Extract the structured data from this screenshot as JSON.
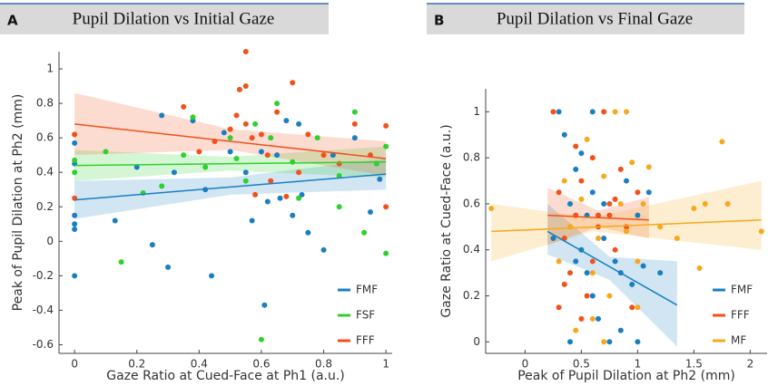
{
  "chart_data": [
    {
      "type": "scatter",
      "label": "A",
      "title": "Pupil Dilation vs Initial Gaze",
      "xlabel": "Gaze Ratio at Cued-Face at Ph1 (a.u.)",
      "ylabel": "Peak of Pupil Dilation at Ph2 (mm)",
      "xlim": [
        -0.05,
        1.02
      ],
      "ylim": [
        -0.65,
        1.1
      ],
      "xticks": [
        0,
        0.2,
        0.4,
        0.6,
        0.8,
        1
      ],
      "yticks": [
        -0.6,
        -0.4,
        -0.2,
        0,
        0.2,
        0.4,
        0.6,
        0.8,
        1
      ],
      "grid": false,
      "legend": "lower right",
      "series": [
        {
          "name": "FMF",
          "color": "#1a7fc1",
          "x": [
            0,
            0,
            0,
            0,
            0,
            0,
            0.13,
            0.2,
            0.25,
            0.28,
            0.3,
            0.32,
            0.38,
            0.42,
            0.44,
            0.48,
            0.5,
            0.55,
            0.57,
            0.6,
            0.61,
            0.62,
            0.65,
            0.68,
            0.7,
            0.72,
            0.75,
            0.8,
            0.83,
            0.9,
            0.95,
            0.98,
            0.66,
            0.73
          ],
          "values": [
            0.57,
            0.15,
            0.1,
            0.07,
            -0.2,
            0.45,
            0.12,
            0.43,
            -0.02,
            0.73,
            -0.15,
            0.4,
            0.7,
            0.3,
            -0.2,
            0.63,
            0.52,
            0.4,
            0.12,
            0.52,
            -0.37,
            0.23,
            0.5,
            0.7,
            0.15,
            0.68,
            0.05,
            -0.05,
            0.5,
            0.6,
            0.17,
            0.36,
            0.25,
            0.27
          ],
          "fit": {
            "x": [
              0,
              1
            ],
            "y": [
              0.24,
              0.39
            ]
          },
          "band": {
            "x": [
              0,
              0.5,
              1
            ],
            "lower": [
              0.13,
              0.27,
              0.3
            ],
            "upper": [
              0.35,
              0.37,
              0.48
            ]
          }
        },
        {
          "name": "FSF",
          "color": "#2fd02f",
          "x": [
            0,
            0,
            0,
            0.1,
            0.15,
            0.22,
            0.28,
            0.35,
            0.38,
            0.42,
            0.5,
            0.52,
            0.55,
            0.58,
            0.6,
            0.63,
            0.65,
            0.7,
            0.72,
            0.78,
            0.85,
            0.9,
            0.93,
            0.97,
            1,
            1,
            0.85
          ],
          "values": [
            0.62,
            0.47,
            0.4,
            0.52,
            -0.12,
            0.28,
            0.32,
            0.5,
            0.72,
            0.43,
            0.6,
            0.48,
            0.35,
            0.68,
            -0.57,
            0.6,
            0.8,
            0.46,
            0.25,
            0.6,
            0.2,
            0.75,
            0.05,
            0.45,
            0.55,
            -0.07,
            0.38
          ],
          "fit": {
            "x": [
              0,
              1
            ],
            "y": [
              0.44,
              0.46
            ]
          },
          "band": {
            "x": [
              0,
              0.5,
              1
            ],
            "lower": [
              0.35,
              0.41,
              0.37
            ],
            "upper": [
              0.53,
              0.49,
              0.55
            ]
          }
        },
        {
          "name": "FFF",
          "color": "#f2511b",
          "x": [
            0,
            0,
            0.35,
            0.4,
            0.45,
            0.5,
            0.52,
            0.53,
            0.55,
            0.55,
            0.55,
            0.57,
            0.6,
            0.62,
            0.63,
            0.65,
            0.7,
            0.72,
            0.75,
            0.8,
            0.85,
            0.9,
            0.95,
            1,
            1,
            0.58,
            0.68
          ],
          "values": [
            0.25,
            0.62,
            0.78,
            0.52,
            0.58,
            0.65,
            0.73,
            0.88,
            0.68,
            1.1,
            0.9,
            0.6,
            0.62,
            0.5,
            0.35,
            0.75,
            0.92,
            0.4,
            0.62,
            0.5,
            0.45,
            0.68,
            0.5,
            0.67,
            0.2,
            0.27,
            0.26
          ],
          "fit": {
            "x": [
              0,
              1
            ],
            "y": [
              0.68,
              0.48
            ]
          },
          "band": {
            "x": [
              0,
              0.5,
              1
            ],
            "lower": [
              0.5,
              0.53,
              0.38
            ],
            "upper": [
              0.86,
              0.65,
              0.58
            ]
          }
        }
      ]
    },
    {
      "type": "scatter",
      "label": "B",
      "title": "Pupil Dilation vs Final Gaze",
      "xlabel": "Peak of Pupil Dilation at Ph2 (mm)",
      "ylabel": "Gaze Ratio at Cued-Face (a.u.)",
      "xlim": [
        -0.35,
        2.15
      ],
      "ylim": [
        -0.05,
        1.1
      ],
      "xticks": [
        0,
        0.5,
        1,
        1.5,
        2
      ],
      "yticks": [
        0,
        0.2,
        0.4,
        0.6,
        0.8,
        1
      ],
      "grid": false,
      "legend": "lower right",
      "series": [
        {
          "name": "FMF",
          "color": "#1a7fc1",
          "x": [
            0.3,
            0.35,
            0.4,
            0.45,
            0.5,
            0.55,
            0.6,
            0.6,
            0.65,
            0.7,
            0.75,
            0.8,
            0.85,
            0.9,
            0.95,
            1,
            1.05,
            1.1,
            1.2,
            0.25,
            0.4,
            0.55,
            0.7,
            0.85,
            1,
            0.6,
            0.45,
            0.5
          ],
          "values": [
            1,
            0.9,
            0.6,
            0.75,
            0.4,
            0.3,
            0.2,
            0.65,
            0.1,
            0.45,
            0,
            0.35,
            0.3,
            0.7,
            0.25,
            0.55,
            0.33,
            0.65,
            0.3,
            0.45,
            0,
            0.55,
            0.6,
            0.05,
            0,
            1,
            0.35,
            0.82
          ],
          "fit": {
            "x": [
              0.2,
              1.35
            ],
            "y": [
              0.48,
              0.16
            ]
          },
          "band": {
            "x": [
              0.2,
              0.75,
              1.35
            ],
            "lower": [
              0.38,
              0.27,
              -0.02
            ],
            "upper": [
              0.6,
              0.37,
              0.35
            ]
          }
        },
        {
          "name": "FFF",
          "color": "#f2511b",
          "x": [
            0.25,
            0.3,
            0.35,
            0.4,
            0.45,
            0.5,
            0.55,
            0.6,
            0.65,
            0.7,
            0.75,
            0.8,
            0.85,
            0.9,
            0.95,
            1.0,
            0.3,
            0.5,
            0.65,
            0.8,
            0.35,
            0.6,
            0.75,
            0.45
          ],
          "values": [
            1,
            0.65,
            0.45,
            0.3,
            0.55,
            0.7,
            0.2,
            0.8,
            0.5,
            1,
            0.6,
            0.4,
            0.75,
            0.5,
            0.15,
            0.65,
            0.15,
            0.1,
            0.55,
            0.62,
            0.25,
            0.35,
            0.55,
            0.85
          ],
          "fit": {
            "x": [
              0.2,
              1.1
            ],
            "y": [
              0.55,
              0.53
            ]
          },
          "band": {
            "x": [
              0.2,
              0.65,
              1.1
            ],
            "lower": [
              0.42,
              0.5,
              0.45
            ],
            "upper": [
              0.67,
              0.57,
              0.63
            ]
          }
        },
        {
          "name": "MF",
          "color": "#f7a81b",
          "x": [
            -0.3,
            0.3,
            0.35,
            0.4,
            0.45,
            0.5,
            0.55,
            0.6,
            0.65,
            0.7,
            0.75,
            0.8,
            0.85,
            0.9,
            0.95,
            1.0,
            1.05,
            1.1,
            1.2,
            1.5,
            1.55,
            1.6,
            1.75,
            1.8,
            2.1,
            1.35,
            0.6,
            0.7,
            0.9,
            1.0
          ],
          "values": [
            0.58,
            0.35,
            0.7,
            0.5,
            0.05,
            0.62,
            0.88,
            0.3,
            0.45,
            0.72,
            0.2,
            1,
            0.6,
            0.48,
            0.78,
            0.35,
            0.6,
            0.76,
            0.5,
            0.58,
            0.32,
            0.6,
            0.87,
            0.6,
            0.48,
            0.45,
            0.1,
            0,
            1,
            0.15
          ],
          "fit": {
            "x": [
              -0.3,
              2.1
            ],
            "y": [
              0.48,
              0.53
            ]
          },
          "band": {
            "x": [
              -0.3,
              0.6,
              2.1
            ],
            "lower": [
              0.35,
              0.48,
              0.4
            ],
            "upper": [
              0.6,
              0.54,
              0.7
            ]
          }
        }
      ]
    }
  ]
}
